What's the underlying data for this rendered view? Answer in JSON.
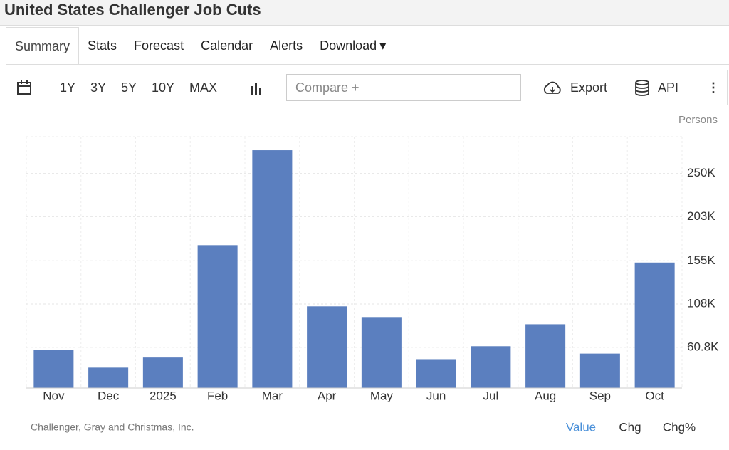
{
  "header": {
    "title": "United States Challenger Job Cuts"
  },
  "tabs": [
    "Summary",
    "Stats",
    "Forecast",
    "Calendar",
    "Alerts",
    "Download"
  ],
  "toolbar": {
    "ranges": [
      "1Y",
      "3Y",
      "5Y",
      "10Y",
      "MAX"
    ],
    "compare": "Compare +",
    "export": "Export",
    "api": "API"
  },
  "chart_data": {
    "type": "bar",
    "unit": "Persons",
    "color": "#5b7fbf",
    "categories": [
      "Nov",
      "Dec",
      "2025",
      "Feb",
      "Mar",
      "Apr",
      "May",
      "Jun",
      "Jul",
      "Aug",
      "Sep",
      "Oct"
    ],
    "values": [
      57727,
      38792,
      49795,
      172017,
      275240,
      105441,
      93816,
      47999,
      62075,
      85979,
      54064,
      153074
    ],
    "ylim": [
      16600,
      290000
    ],
    "yticks": [
      {
        "value": 60800,
        "label": "60.8K"
      },
      {
        "value": 108000,
        "label": "108K"
      },
      {
        "value": 155000,
        "label": "155K"
      },
      {
        "value": 203000,
        "label": "203K"
      },
      {
        "value": 250000,
        "label": "250K"
      }
    ],
    "grid": true
  },
  "footer": {
    "source": "Challenger, Gray and Christmas, Inc.",
    "views": [
      "Value",
      "Chg",
      "Chg%"
    ]
  }
}
